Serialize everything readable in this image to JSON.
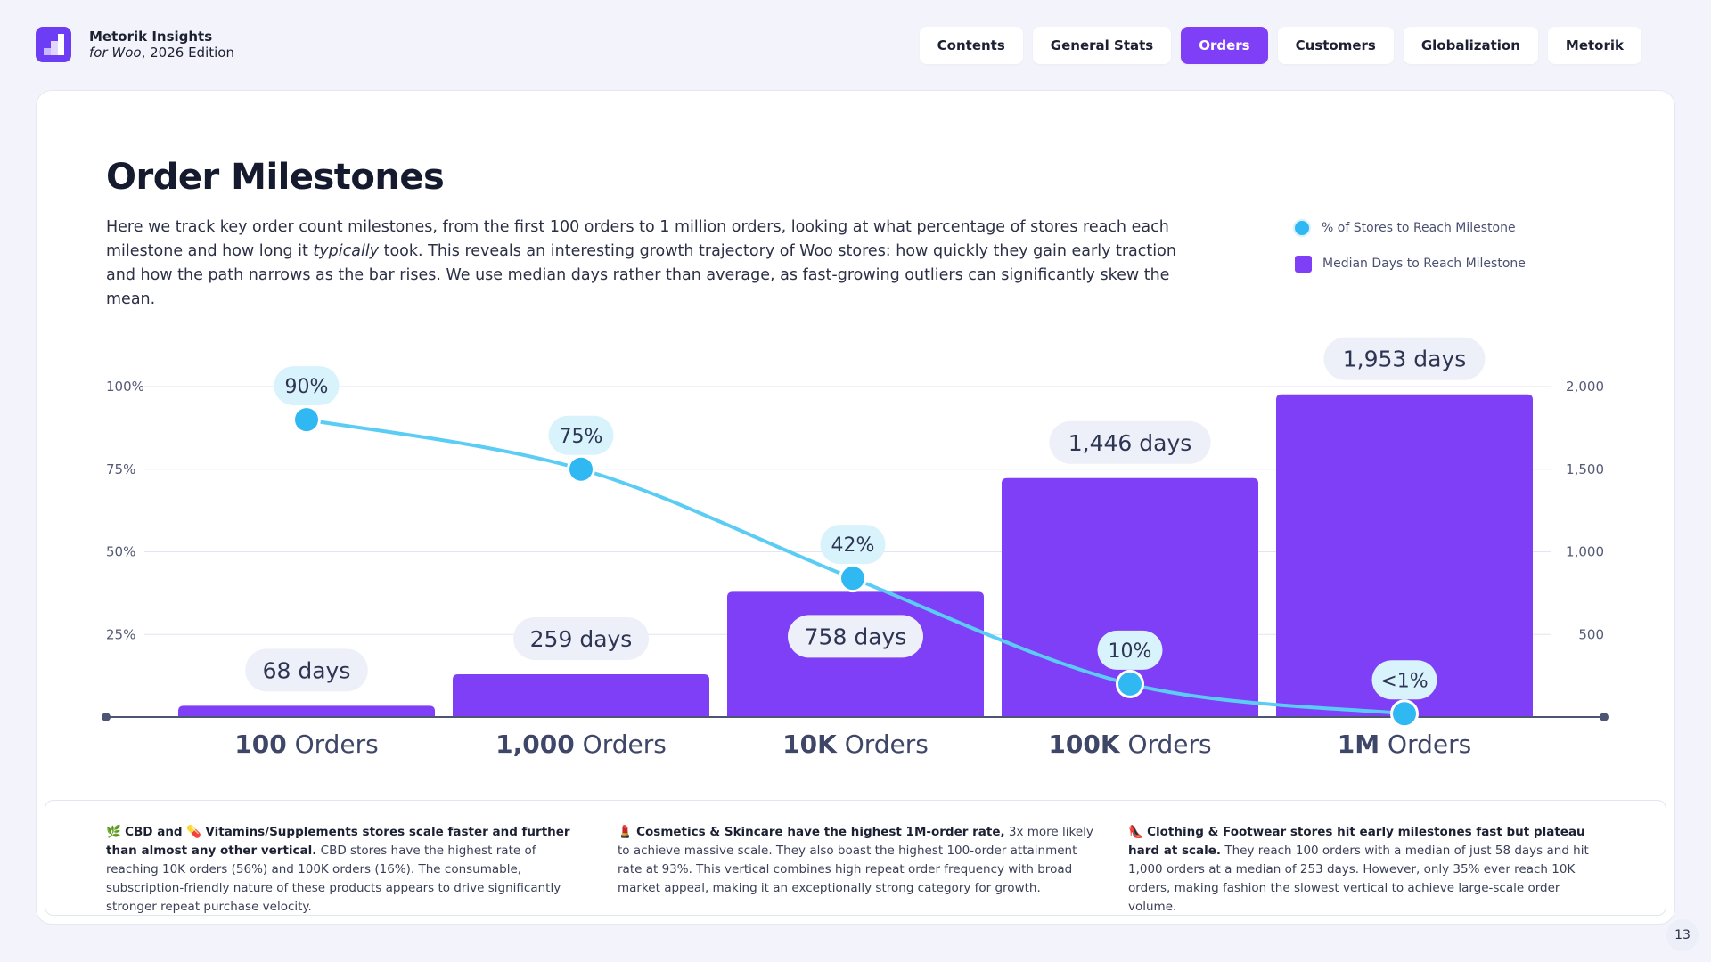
{
  "brand": {
    "name": "Metorik Insights",
    "sub_italic": "for Woo",
    "sub_rest": ", 2026 Edition"
  },
  "nav": {
    "items": [
      "Contents",
      "General Stats",
      "Orders",
      "Customers",
      "Globalization",
      "Metorik"
    ],
    "active": "Orders"
  },
  "page": {
    "title": "Order Milestones",
    "desc_part1": "Here we track key order count milestones, from the first 100 orders to 1 million orders, looking at what percentage of stores reach each milestone and how long it ",
    "desc_italic": "typically",
    "desc_part2": " took. This reveals an interesting growth trajectory of Woo stores: how quickly they gain early traction and how the path narrows as the bar rises. We use median days rather than average, as fast-growing outliers can significantly skew the mean.",
    "page_number": "13"
  },
  "colors": {
    "bar": "#7f3ff6",
    "line": "#5bcdf5",
    "point": "#2fb8f2",
    "accent": "#7f3ff6"
  },
  "chart_data": {
    "type": "bar",
    "categories": [
      {
        "bold": "100",
        "rest": " Orders"
      },
      {
        "bold": "1,000",
        "rest": " Orders"
      },
      {
        "bold": "10K",
        "rest": " Orders"
      },
      {
        "bold": "100K",
        "rest": " Orders"
      },
      {
        "bold": "1M",
        "rest": " Orders"
      }
    ],
    "series": [
      {
        "name": "Median Days to Reach Milestone",
        "type": "bar",
        "axis": "right",
        "values": [
          68,
          259,
          758,
          1446,
          1953
        ],
        "labels": [
          "68 days",
          "259 days",
          "758 days",
          "1,446 days",
          "1,953 days"
        ]
      },
      {
        "name": "% of Stores to Reach Milestone",
        "type": "line",
        "axis": "left",
        "values": [
          90,
          75,
          42,
          10,
          1
        ],
        "labels": [
          "90%",
          "75%",
          "42%",
          "10%",
          "<1%"
        ]
      }
    ],
    "left_axis": {
      "ylim": [
        0,
        100
      ],
      "ticks": [
        25,
        50,
        75,
        100
      ],
      "tick_labels": [
        "25%",
        "50%",
        "75%",
        "100%"
      ]
    },
    "right_axis": {
      "ylim": [
        0,
        2000
      ],
      "ticks": [
        500,
        1000,
        1500,
        2000
      ],
      "tick_labels": [
        "500",
        "1,000",
        "1,500",
        "2,000"
      ]
    },
    "grid": true,
    "legend": "top-right"
  },
  "insights": [
    {
      "emoji": "🌿",
      "bold_a": "CBD and ",
      "emoji2": "💊",
      "bold_b": "Vitamins/Supplements stores scale faster and further than almost any other vertical.",
      "text": " CBD stores have the highest rate of reaching 10K orders (56%) and 100K orders (16%). The consumable, subscription-friendly nature of these products appears to drive significantly stronger repeat purchase velocity."
    },
    {
      "emoji": "💄",
      "bold_a": "Cosmetics & Skincare have the highest 1M-order rate,",
      "emoji2": "",
      "bold_b": "",
      "text": " 3x more likely to achieve massive scale. They also boast the highest 100-order attainment rate at 93%. This vertical combines high repeat order frequency with broad market appeal, making it an exceptionally strong category for growth."
    },
    {
      "emoji": "👠",
      "bold_a": "Clothing & Footwear stores hit early milestones fast but plateau hard at scale.",
      "emoji2": "",
      "bold_b": "",
      "text": " They reach 100 orders with a median of just 58 days and hit 1,000 orders at a median of 253 days. However, only 35% ever reach 10K orders, making fashion the slowest vertical to achieve large-scale order volume."
    }
  ]
}
